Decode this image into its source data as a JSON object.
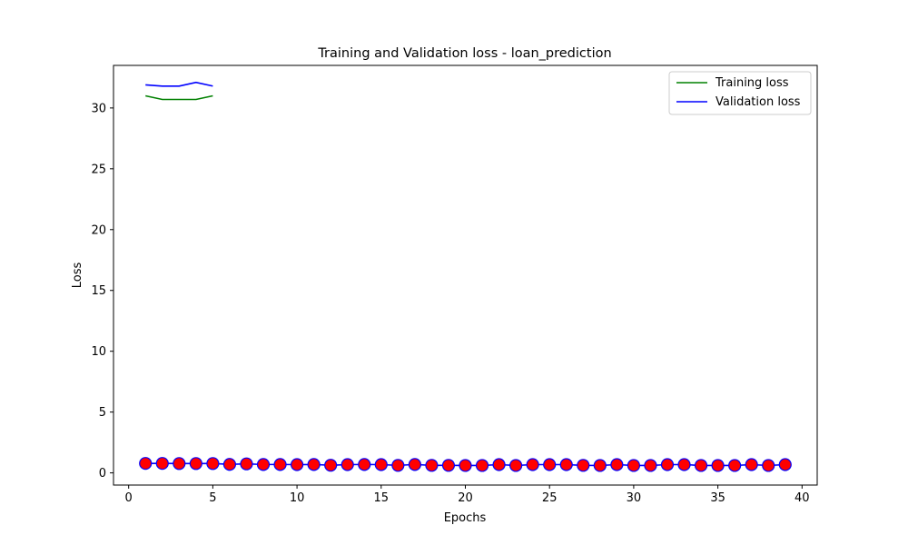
{
  "chart_data": {
    "type": "line",
    "title": "Training and Validation loss - loan_prediction",
    "xlabel": "Epochs",
    "ylabel": "Loss",
    "xlim": [
      -0.9,
      40.9
    ],
    "ylim": [
      -1.0,
      33.5
    ],
    "xticks": [
      0,
      5,
      10,
      15,
      20,
      25,
      30,
      35,
      40
    ],
    "yticks": [
      0,
      5,
      10,
      15,
      20,
      25,
      30
    ],
    "legend_position": "upper right",
    "grid": false,
    "series": [
      {
        "name": "Training loss",
        "color": "#008000",
        "style": "line",
        "x": [
          1,
          2,
          3,
          4,
          5
        ],
        "y": [
          31.0,
          30.7,
          30.7,
          30.7,
          31.0
        ]
      },
      {
        "name": "Validation loss",
        "color": "#0000ff",
        "style": "line",
        "x": [
          1,
          2,
          3,
          4,
          5
        ],
        "y": [
          31.9,
          31.8,
          31.8,
          32.1,
          31.8
        ]
      },
      {
        "name": "",
        "color": "#ff0000",
        "edge_color": "#0000ff",
        "style": "line+markers",
        "x": [
          1,
          2,
          3,
          4,
          5,
          6,
          7,
          8,
          9,
          10,
          11,
          12,
          13,
          14,
          15,
          16,
          17,
          18,
          19,
          20,
          21,
          22,
          23,
          24,
          25,
          26,
          27,
          28,
          29,
          30,
          31,
          32,
          33,
          34,
          35,
          36,
          37,
          38,
          39
        ],
        "y": [
          0.78,
          0.78,
          0.77,
          0.77,
          0.77,
          0.7,
          0.74,
          0.69,
          0.69,
          0.68,
          0.69,
          0.63,
          0.68,
          0.69,
          0.68,
          0.62,
          0.69,
          0.62,
          0.62,
          0.61,
          0.61,
          0.68,
          0.61,
          0.68,
          0.68,
          0.68,
          0.62,
          0.61,
          0.68,
          0.61,
          0.61,
          0.68,
          0.68,
          0.61,
          0.61,
          0.61,
          0.68,
          0.61,
          0.68
        ]
      }
    ]
  }
}
